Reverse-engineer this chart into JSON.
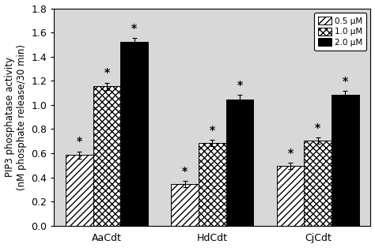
{
  "groups": [
    "AaCdt",
    "HdCdt",
    "CjCdt"
  ],
  "concentrations": [
    "0.5 μM",
    "1.0 μM",
    "2.0 μM"
  ],
  "values": [
    [
      0.585,
      1.155,
      1.525
    ],
    [
      0.345,
      0.685,
      1.045
    ],
    [
      0.495,
      0.705,
      1.085
    ]
  ],
  "errors": [
    [
      0.03,
      0.03,
      0.03
    ],
    [
      0.025,
      0.025,
      0.04
    ],
    [
      0.025,
      0.025,
      0.03
    ]
  ],
  "bar_width": 0.26,
  "ylabel": "PIP3 phosphatase activity\n(nM phosphate release/30 min)",
  "ylim": [
    0.0,
    1.8
  ],
  "yticks": [
    0.0,
    0.2,
    0.4,
    0.6,
    0.8,
    1.0,
    1.2,
    1.4,
    1.6,
    1.8
  ],
  "hatch_patterns": [
    "////",
    "xxxx",
    ""
  ],
  "face_colors": [
    "white",
    "white",
    "black"
  ],
  "edge_colors": [
    "black",
    "black",
    "black"
  ],
  "plot_bg_color": "#d8d8d8",
  "star_fontsize": 10,
  "legend_fontsize": 7.5,
  "tick_fontsize": 9,
  "label_fontsize": 8.5
}
